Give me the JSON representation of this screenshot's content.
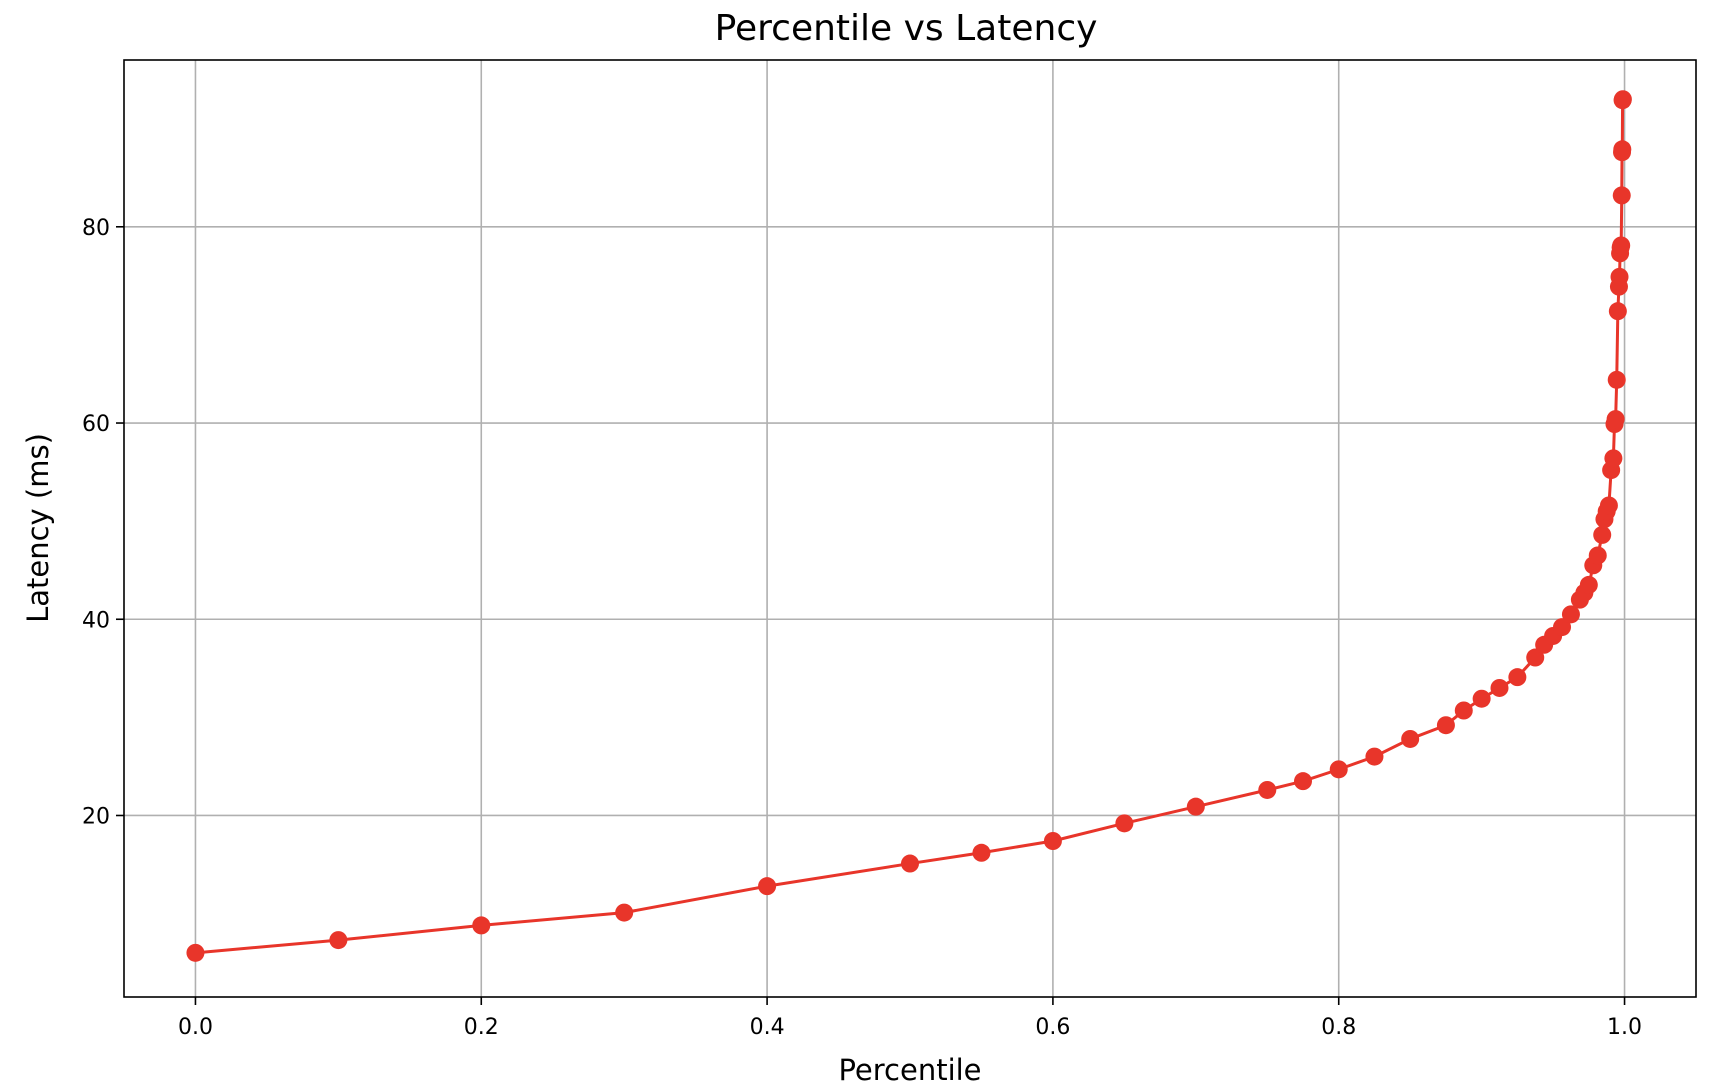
{
  "chart_data": {
    "type": "line",
    "title": "Percentile vs Latency",
    "xlabel": "Percentile",
    "ylabel": "Latency (ms)",
    "xlim": [
      -0.05,
      1.05
    ],
    "ylim": [
      1.5,
      97
    ],
    "xticks": [
      0.0,
      0.2,
      0.4,
      0.6,
      0.8,
      1.0
    ],
    "xtick_labels": [
      "0.0",
      "0.2",
      "0.4",
      "0.6",
      "0.8",
      "1.0"
    ],
    "yticks": [
      20,
      40,
      60,
      80
    ],
    "ytick_labels": [
      "20",
      "40",
      "60",
      "80"
    ],
    "grid": true,
    "line_color": "#e8352a",
    "marker": "circle",
    "series": [
      {
        "x": [
          0.0,
          0.1,
          0.2,
          0.3,
          0.4,
          0.5,
          0.55,
          0.6,
          0.65,
          0.7,
          0.75,
          0.775,
          0.8,
          0.825,
          0.85,
          0.875,
          0.8875,
          0.9,
          0.9125,
          0.925,
          0.9375,
          0.94375,
          0.95,
          0.95625,
          0.9625,
          0.96875,
          0.971875,
          0.975,
          0.978125,
          0.98125,
          0.984375,
          0.9859375,
          0.9875,
          0.9890625,
          0.990625,
          0.9921875,
          0.99296875,
          0.99375,
          0.99453125,
          0.9953125,
          0.99609375,
          0.996484375,
          0.996875,
          0.997265625,
          0.99765625,
          0.998046875,
          0.99824219,
          0.9984375,
          0.99863281,
          0.99882812
        ],
        "y": [
          6.0,
          7.3,
          8.8,
          10.1,
          12.8,
          15.1,
          16.2,
          17.4,
          19.2,
          20.9,
          22.6,
          23.5,
          24.7,
          26.0,
          27.8,
          29.2,
          30.7,
          31.9,
          33.0,
          34.1,
          36.1,
          37.4,
          38.3,
          39.2,
          40.5,
          42.0,
          42.7,
          43.5,
          45.5,
          46.5,
          48.6,
          50.2,
          51.0,
          51.6,
          55.2,
          56.4,
          59.9,
          60.4,
          64.4,
          71.4,
          73.9,
          74.9,
          77.3,
          77.9,
          78.1,
          83.2,
          87.6,
          87.9,
          92.9,
          93.0
        ]
      }
    ]
  }
}
